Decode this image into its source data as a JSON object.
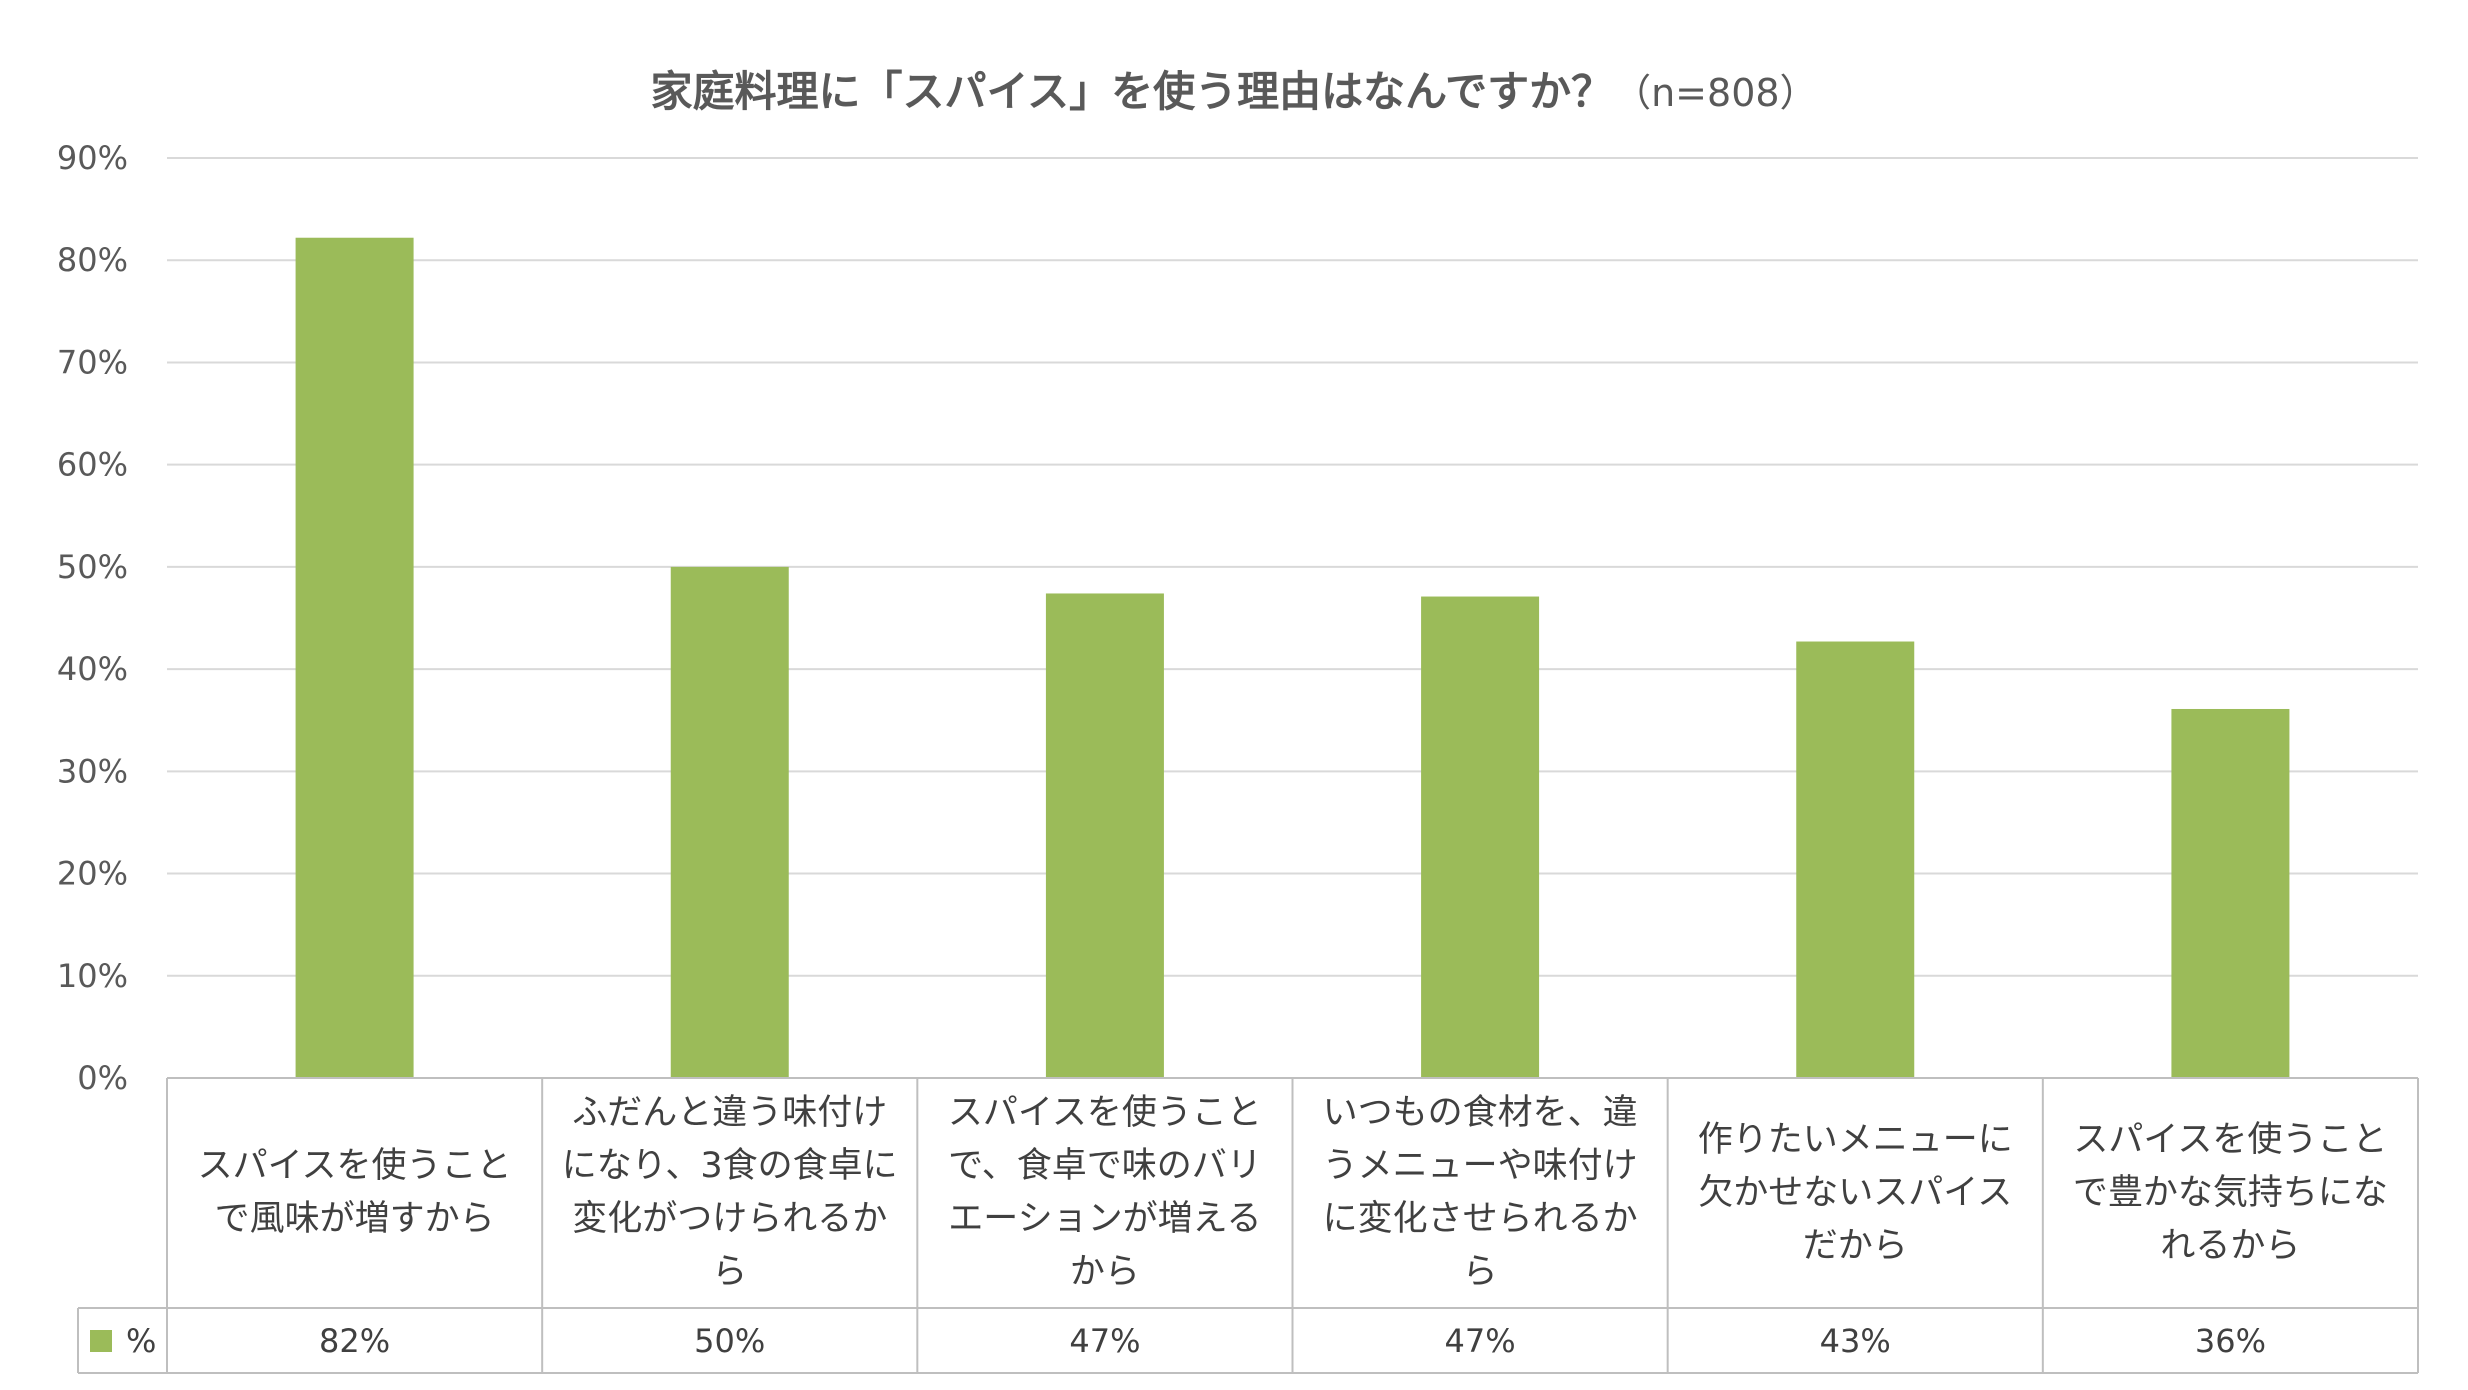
{
  "colors": {
    "bar": "#9BBB59",
    "grid": "#D9D9D9",
    "text": "#595959",
    "table_border": "#BFBFBF"
  },
  "chart_data": {
    "type": "bar",
    "title": "家庭料理に「スパイス」を使う理由はなんですか？",
    "title_note": "（n=808）",
    "categories": [
      "スパイスを使うことで風味が増すから",
      "ふだんと違う味付けになり、3食の食卓に変化がつけられるから",
      "スパイスを使うことで、食卓で味のバリエーションが増えるから",
      "いつもの食材を、違うメニューや味付けに変化させられるから",
      "作りたいメニューに欠かせないスパイスだから",
      "スパイスを使うことで豊かな気持ちになれるから"
    ],
    "series": [
      {
        "name": "%",
        "values": [
          82.2,
          50.0,
          47.4,
          47.1,
          42.7,
          36.1
        ]
      }
    ],
    "data_labels": [
      "82%",
      "50%",
      "47%",
      "47%",
      "43%",
      "36%"
    ],
    "yticks": [
      "0%",
      "10%",
      "20%",
      "30%",
      "40%",
      "50%",
      "60%",
      "70%",
      "80%",
      "90%"
    ],
    "ylim": [
      0,
      90
    ],
    "grid": true,
    "legend": "data-table"
  }
}
